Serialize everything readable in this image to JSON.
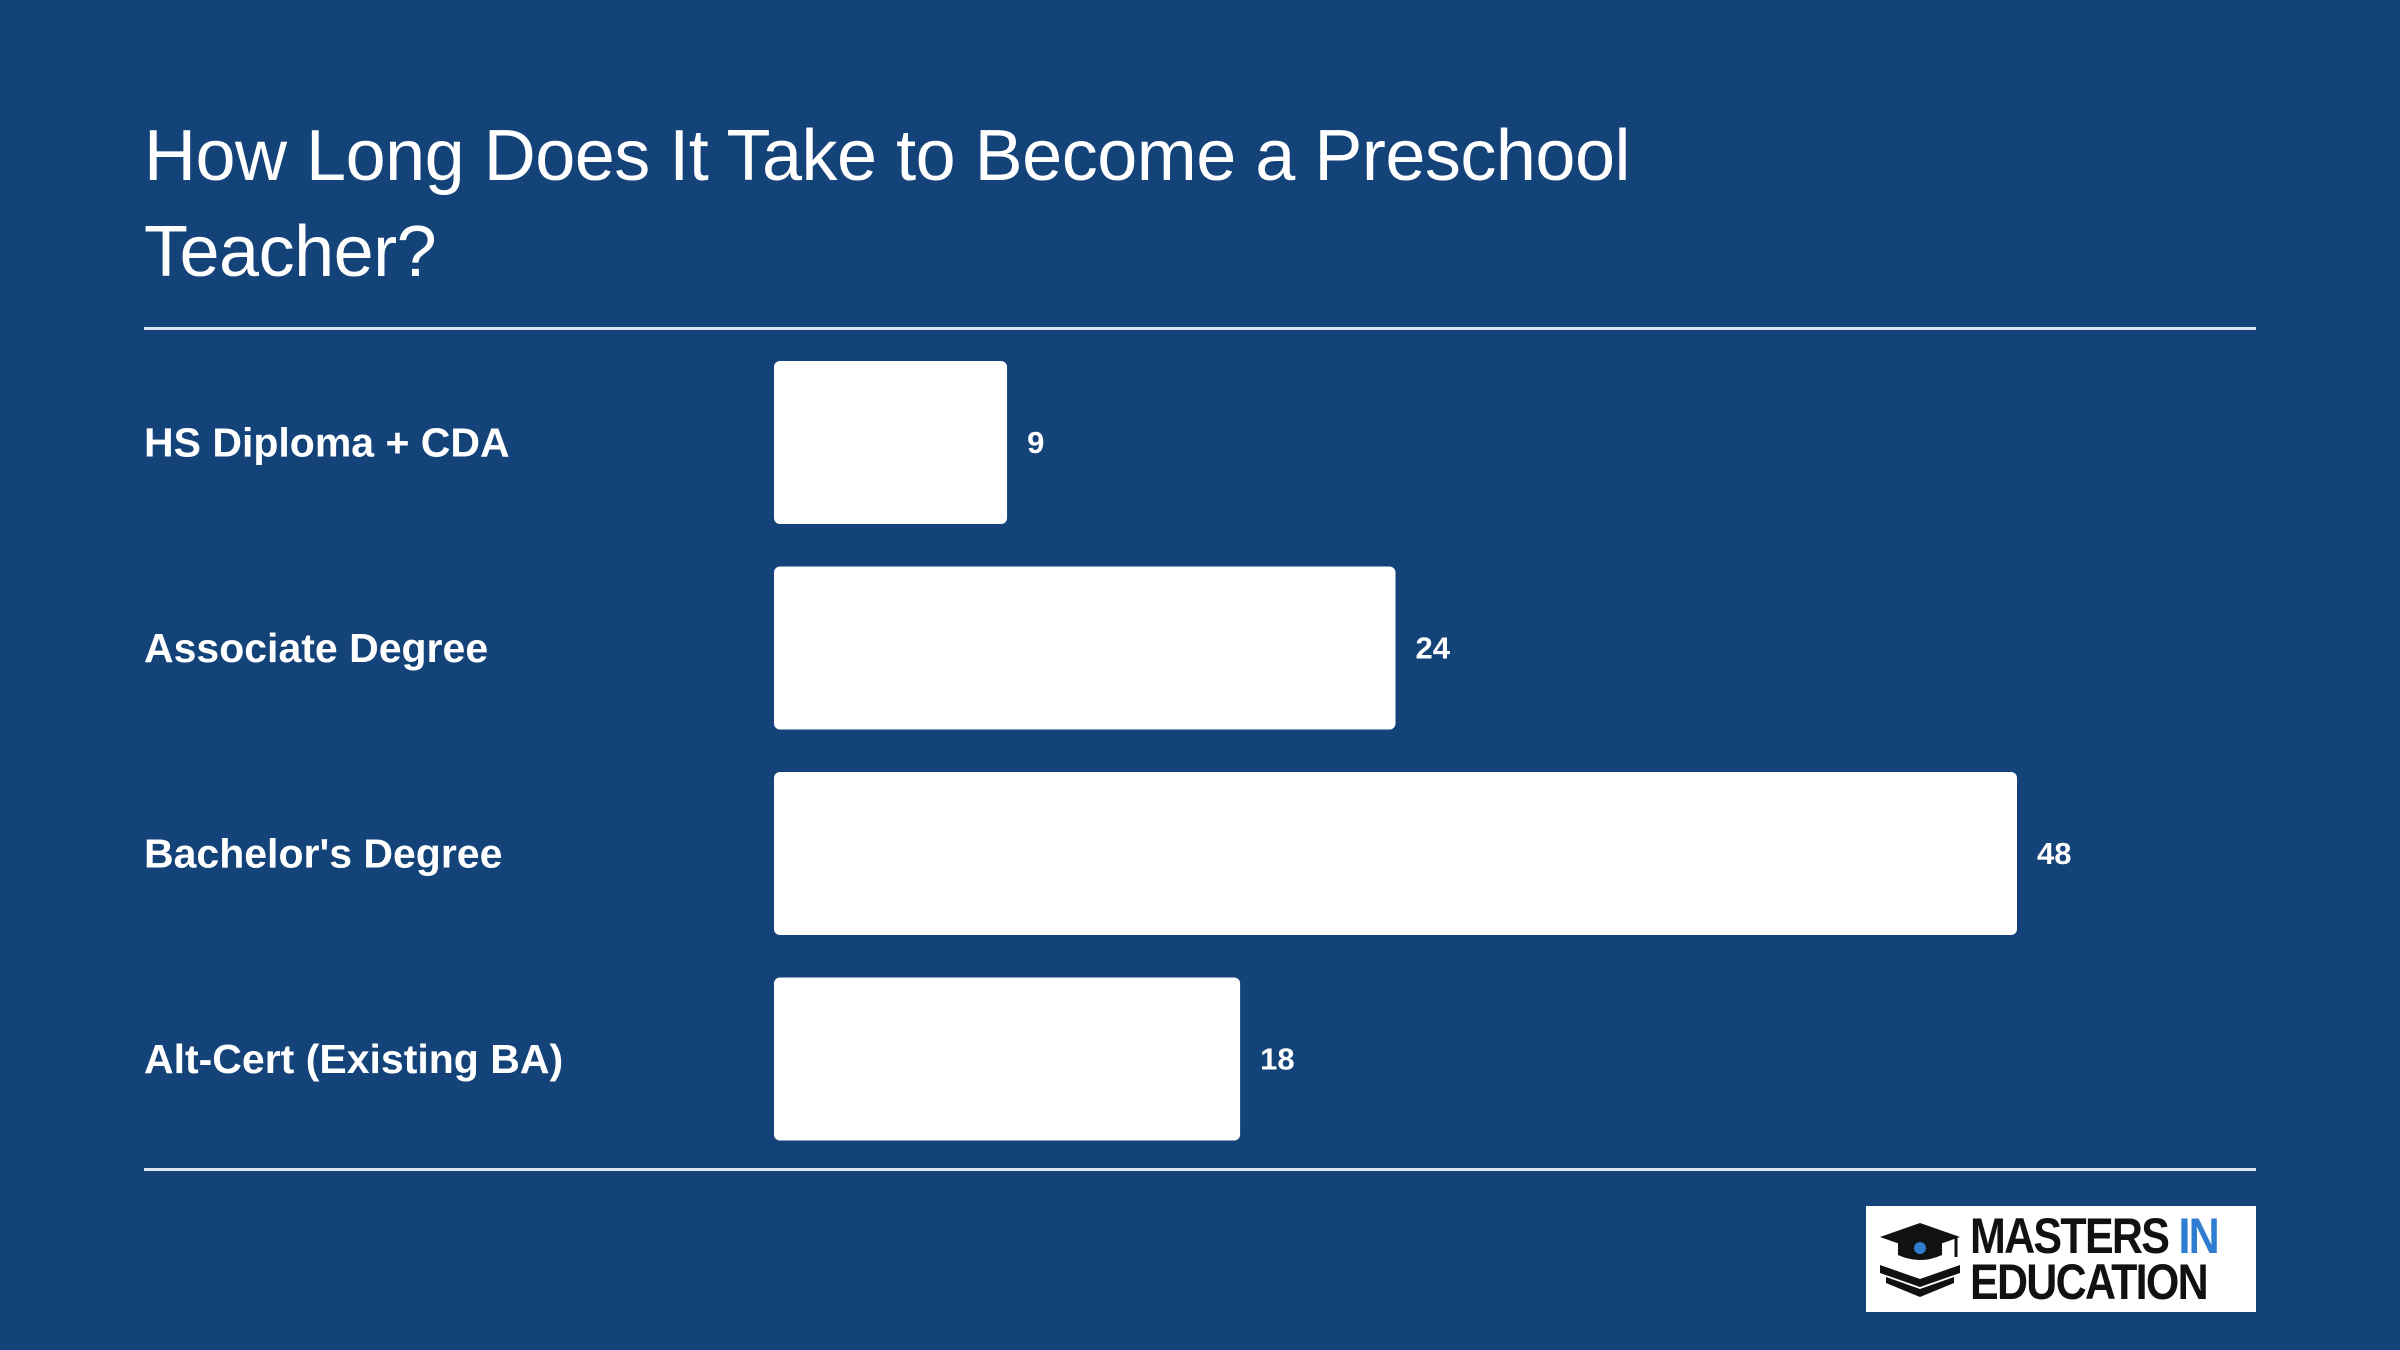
{
  "title": "How Long Does It Take to Become a Preschool Teacher?",
  "colors": {
    "background": "#134378",
    "bar": "#ffffff",
    "text": "#ffffff",
    "logo_accent": "#2f7dd1"
  },
  "logo": {
    "line1_a": "MASTERS",
    "line1_b": "IN",
    "line2": "EDUCATION",
    "icon": "graduation-cap-book-icon"
  },
  "chart_data": {
    "type": "bar",
    "orientation": "horizontal",
    "categories": [
      "HS Diploma + CDA",
      "Associate Degree",
      "Bachelor's Degree",
      "Alt-Cert (Existing BA)"
    ],
    "values": [
      9,
      24,
      48,
      18
    ],
    "title": "How Long Does It Take to Become a Preschool Teacher?",
    "xlabel": "",
    "ylabel": "",
    "xlim": [
      0,
      48
    ],
    "grid": false,
    "legend": "none",
    "data_labels": true
  }
}
